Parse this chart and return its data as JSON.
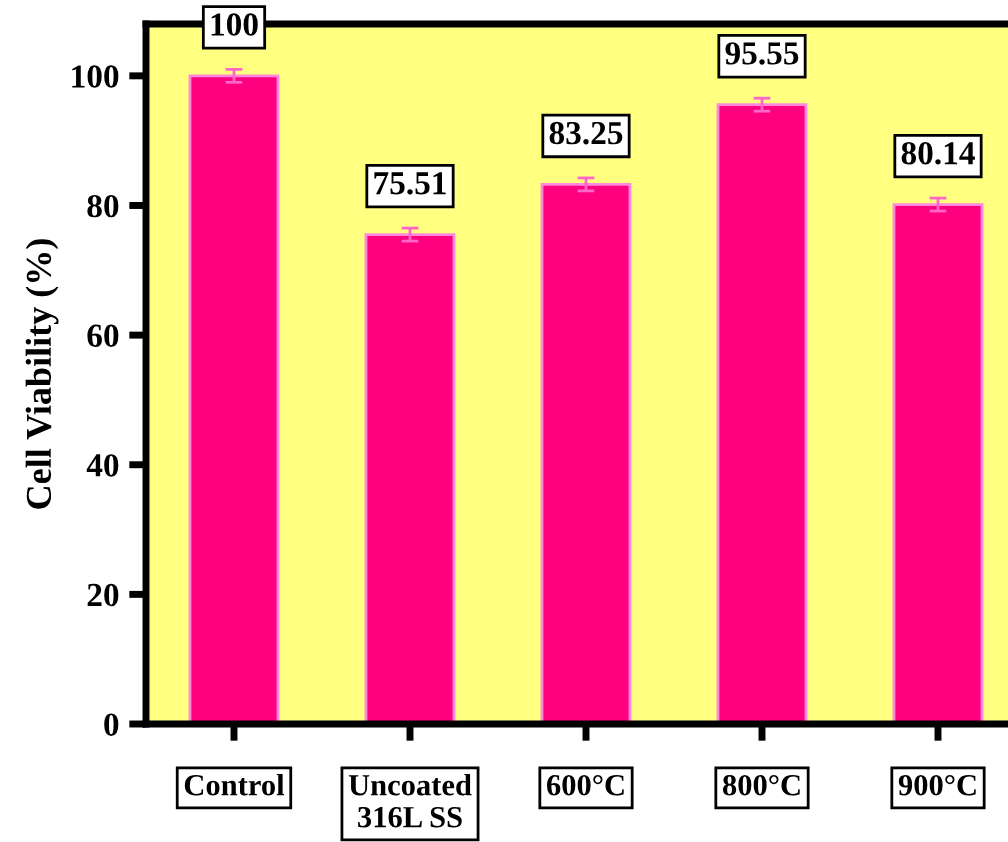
{
  "chart_data": {
    "type": "bar",
    "ylabel": "Cell Viability (%)",
    "categories": [
      "Control",
      "Uncoated\n316L SS",
      "600°C",
      "800°C",
      "900°C"
    ],
    "values": [
      100,
      75.51,
      83.25,
      95.55,
      80.14
    ],
    "errors": [
      1,
      1,
      1,
      1,
      1
    ],
    "color": "#ff007f",
    "data_labels": true,
    "ylim": [
      0,
      108
    ],
    "yticks": [
      0,
      20,
      40,
      60,
      80,
      100
    ],
    "grid": false
  }
}
